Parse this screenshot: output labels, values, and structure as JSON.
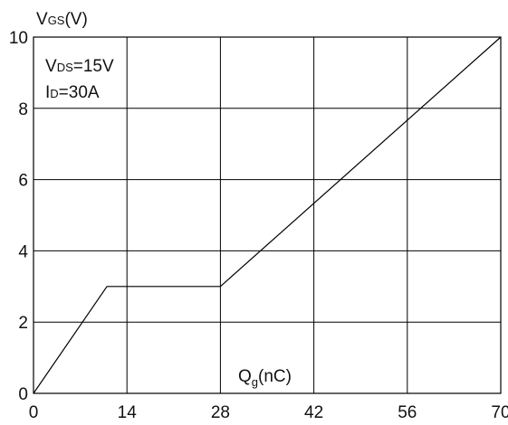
{
  "chart_data": {
    "type": "line",
    "ylabel": {
      "main": "V",
      "sub": "GS",
      "rest": "(V)"
    },
    "xlabel": {
      "main": "Q",
      "sub": "g",
      "rest": "(nC)"
    },
    "annotations": [
      {
        "main": "V",
        "sub": "DS",
        "rest": "=15V"
      },
      {
        "main": "I",
        "sub": "D",
        "rest": "=30A"
      }
    ],
    "xlim": [
      0,
      70
    ],
    "ylim": [
      0,
      10
    ],
    "xticks": [
      0,
      14,
      28,
      42,
      56,
      70
    ],
    "yticks": [
      0,
      2,
      4,
      6,
      8,
      10
    ],
    "grid": true,
    "series": [
      {
        "x": [
          0,
          11,
          28,
          70
        ],
        "y": [
          0,
          3,
          3,
          10
        ]
      }
    ],
    "colors": {
      "line": "#000000",
      "grid": "#000000",
      "text": "#111111"
    }
  }
}
